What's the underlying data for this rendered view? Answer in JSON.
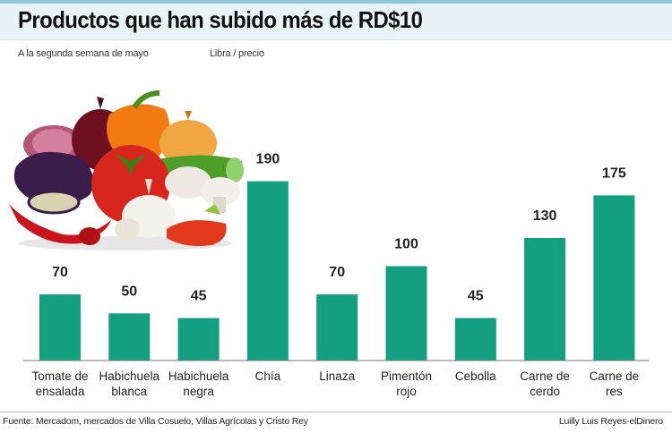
{
  "header": {
    "title": "Productos que han subido más de RD$10",
    "subtitle": "A la segunda semana de mayo",
    "unit": "Libra / precio"
  },
  "footer": {
    "source": "Fuente: Mercadom, mercados de Villa Cosuelo, Villas Agrícolas y Cristo Rey",
    "credit": "Luilly Luis Reyes-elDinero"
  },
  "colors": {
    "bar": "#12a081",
    "title_bg": "#e8f3f8"
  },
  "illustration": {
    "icon": "vegetables-illustration"
  },
  "chart_data": {
    "type": "bar",
    "title": "Productos que han subido más de RD$10",
    "xlabel": "",
    "ylabel": "Libra / precio",
    "ylim": [
      0,
      200
    ],
    "categories": [
      [
        "Tomate de",
        "ensalada"
      ],
      [
        "Habichuela",
        "blanca"
      ],
      [
        "Habichuela",
        "negra"
      ],
      [
        "Chía"
      ],
      [
        "Linaza"
      ],
      [
        "Pimentón",
        "rojo"
      ],
      [
        "Cebolla"
      ],
      [
        "Carne de",
        "cerdo"
      ],
      [
        "Carne de",
        "res"
      ]
    ],
    "values": [
      70,
      50,
      45,
      190,
      70,
      100,
      45,
      130,
      175
    ]
  }
}
